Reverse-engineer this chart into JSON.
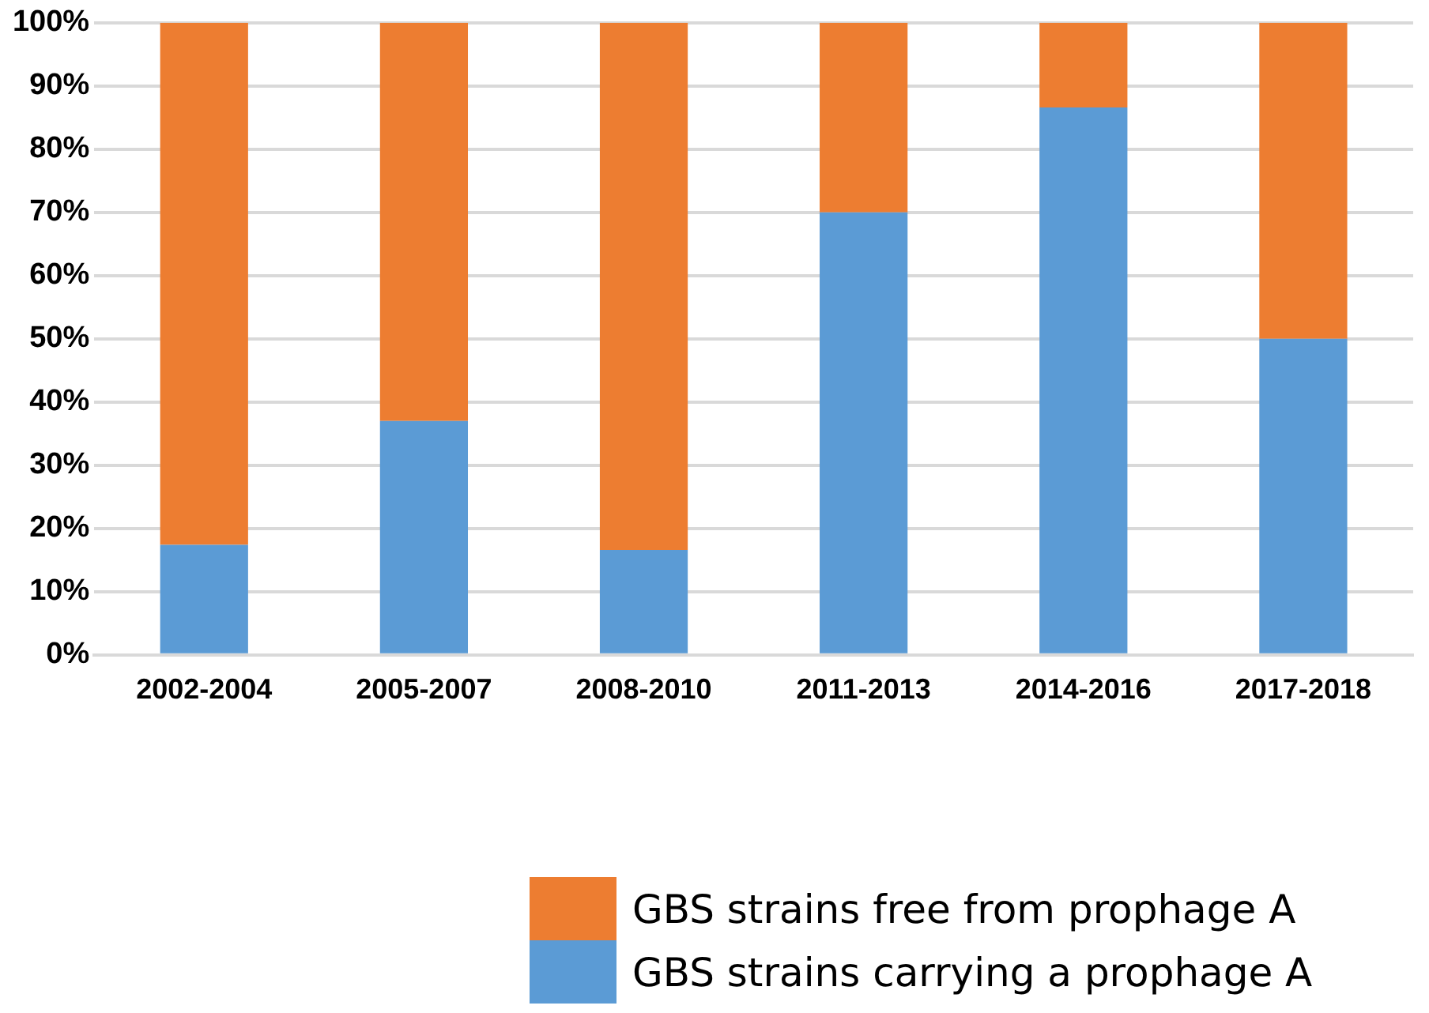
{
  "chart_data": {
    "type": "bar",
    "stacked": true,
    "categories": [
      "2002-2004",
      "2005-2007",
      "2008-2010",
      "2011-2013",
      "2014-2016",
      "2017-2018"
    ],
    "series": [
      {
        "name": "GBS strains carrying a prophage A",
        "color": "#5b9bd5",
        "values": [
          17.4,
          37,
          16.6,
          70,
          86.6,
          50
        ]
      },
      {
        "name": "GBS strains free from prophage A",
        "color": "#ed7d31",
        "values": [
          82.6,
          63,
          83.4,
          30,
          13.4,
          50
        ]
      }
    ],
    "ylim": [
      0,
      100
    ],
    "yticks": [
      {
        "value": 0,
        "label": "0%"
      },
      {
        "value": 10,
        "label": "10%"
      },
      {
        "value": 20,
        "label": "20%"
      },
      {
        "value": 30,
        "label": "30%"
      },
      {
        "value": 40,
        "label": "40%"
      },
      {
        "value": 50,
        "label": "50%"
      },
      {
        "value": 60,
        "label": "60%"
      },
      {
        "value": 70,
        "label": "70%"
      },
      {
        "value": 80,
        "label": "80%"
      },
      {
        "value": 90,
        "label": "90%"
      },
      {
        "value": 100,
        "label": "100%"
      }
    ],
    "grid": "y",
    "legend": "bottom right"
  }
}
